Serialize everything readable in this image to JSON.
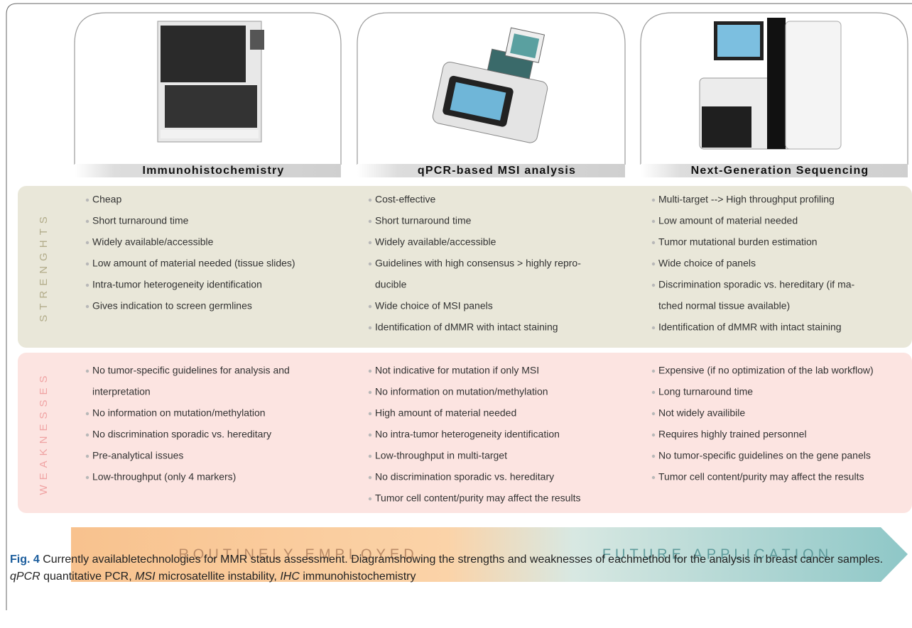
{
  "row_labels": {
    "strengths": "STRENGHTS",
    "weaknesses": "WEAKNESSES"
  },
  "columns": [
    {
      "title": "Immunohistochemistry",
      "strengths": [
        [
          "Cheap"
        ],
        [
          "Short turnaround time"
        ],
        [
          "Widely available/accessible"
        ],
        [
          "Low amount of material needed (tissue slides)"
        ],
        [
          "Intra-tumor heterogeneity identification"
        ],
        [
          "Gives indication to screen germlines"
        ]
      ],
      "weaknesses": [
        [
          "No tumor-specific guidelines for analysis and",
          "interpretation"
        ],
        [
          "No information on mutation/methylation"
        ],
        [
          "No discrimination sporadic vs. hereditary"
        ],
        [
          "Pre-analytical issues"
        ],
        [
          "Low-throughput (only 4 markers)"
        ]
      ]
    },
    {
      "title": "qPCR-based MSI analysis",
      "strengths": [
        [
          "Cost-effective"
        ],
        [
          "Short turnaround time"
        ],
        [
          "Widely available/accessible"
        ],
        [
          "Guidelines with high consensus > highly repro-",
          "ducible"
        ],
        [
          "Wide choice of MSI panels"
        ],
        [
          "Identification of dMMR with intact staining"
        ]
      ],
      "weaknesses": [
        [
          "Not indicative for mutation if only MSI"
        ],
        [
          "No information on mutation/methylation"
        ],
        [
          "High amount of material needed"
        ],
        [
          "No intra-tumor heterogeneity identification"
        ],
        [
          "Low-throughput in multi-target"
        ],
        [
          "No discrimination sporadic vs. hereditary"
        ],
        [
          "Tumor cell content/purity may affect the results"
        ]
      ]
    },
    {
      "title": "Next-Generation Sequencing",
      "strengths": [
        [
          "Multi-target --> High throughput profiling"
        ],
        [
          "Low amount of material needed"
        ],
        [
          "Tumor mutational burden estimation"
        ],
        [
          "Wide choice of panels"
        ],
        [
          "Discrimination sporadic vs. hereditary (if ma-",
          "tched normal tissue available)"
        ],
        [
          "Identification of dMMR with intact staining"
        ]
      ],
      "weaknesses": [
        [
          "Expensive (if no optimization of the lab workflow)"
        ],
        [
          "Long turnaround time"
        ],
        [
          "Not widely availibile"
        ],
        [
          "Requires highly trained personnel"
        ],
        [
          "No tumor-specific guidelines on the gene panels"
        ],
        [
          "Tumor cell content/purity may affect the results"
        ]
      ]
    }
  ],
  "arrow": {
    "left": "ROUTINELY EMPLOYED",
    "right": "FUTURE APPLICATION"
  },
  "caption": {
    "label": "Fig. 4",
    "segments": [
      {
        "text": " Currently availabletechnologies for MMR status assessment. Diagramshowing the strengths and weaknesses of eachmethod for the analysis in breast cancer samples. ",
        "italic": false
      },
      {
        "text": "qPCR",
        "italic": true
      },
      {
        "text": " quantitative PCR, ",
        "italic": false
      },
      {
        "text": "MSI",
        "italic": true
      },
      {
        "text": " microsatellite instability, ",
        "italic": false
      },
      {
        "text": "IHC",
        "italic": true
      },
      {
        "text": " immunohistochemistry",
        "italic": false
      }
    ]
  }
}
